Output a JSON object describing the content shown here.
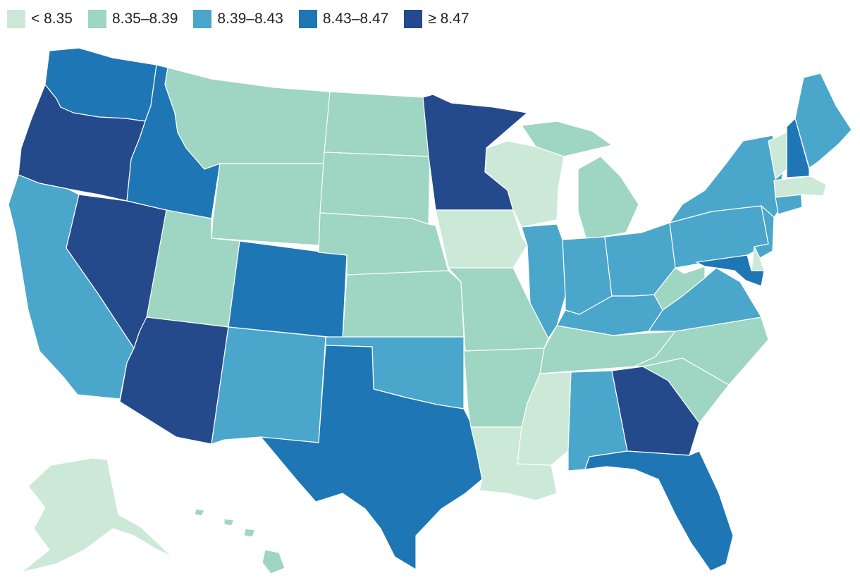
{
  "legend": [
    {
      "label": "< 8.35",
      "color": "#cce9d8"
    },
    {
      "label": "8.35–8.39",
      "color": "#9ed5c3"
    },
    {
      "label": "8.39–8.43",
      "color": "#4aa6cb"
    },
    {
      "label": "8.43–8.47",
      "color": "#1e77b4"
    },
    {
      "label": "≥ 8.47",
      "color": "#254a8c"
    }
  ],
  "map": {
    "classes": {
      "WA": 3,
      "OR": 4,
      "CA": 2,
      "NV": 4,
      "ID": 3,
      "MT": 1,
      "WY": 1,
      "UT": 1,
      "AZ": 4,
      "CO": 3,
      "NM": 2,
      "ND": 1,
      "SD": 1,
      "NE": 1,
      "KS": 1,
      "OK": 2,
      "TX": 3,
      "MN": 4,
      "IA": 0,
      "MO": 1,
      "AR": 1,
      "LA": 0,
      "WI": 0,
      "IL": 2,
      "MI": 1,
      "IN": 2,
      "OH": 2,
      "KY": 2,
      "TN": 1,
      "MS": 0,
      "AL": 2,
      "GA": 4,
      "FL": 3,
      "SC": 1,
      "NC": 1,
      "VA": 2,
      "WV": 1,
      "PA": 2,
      "NY": 2,
      "ME": 2,
      "NH": 3,
      "VT": 0,
      "MA": 0,
      "CT": 2,
      "NJ": 2,
      "MD": 3,
      "DE": 0,
      "AK": 0,
      "HI": 1
    }
  }
}
